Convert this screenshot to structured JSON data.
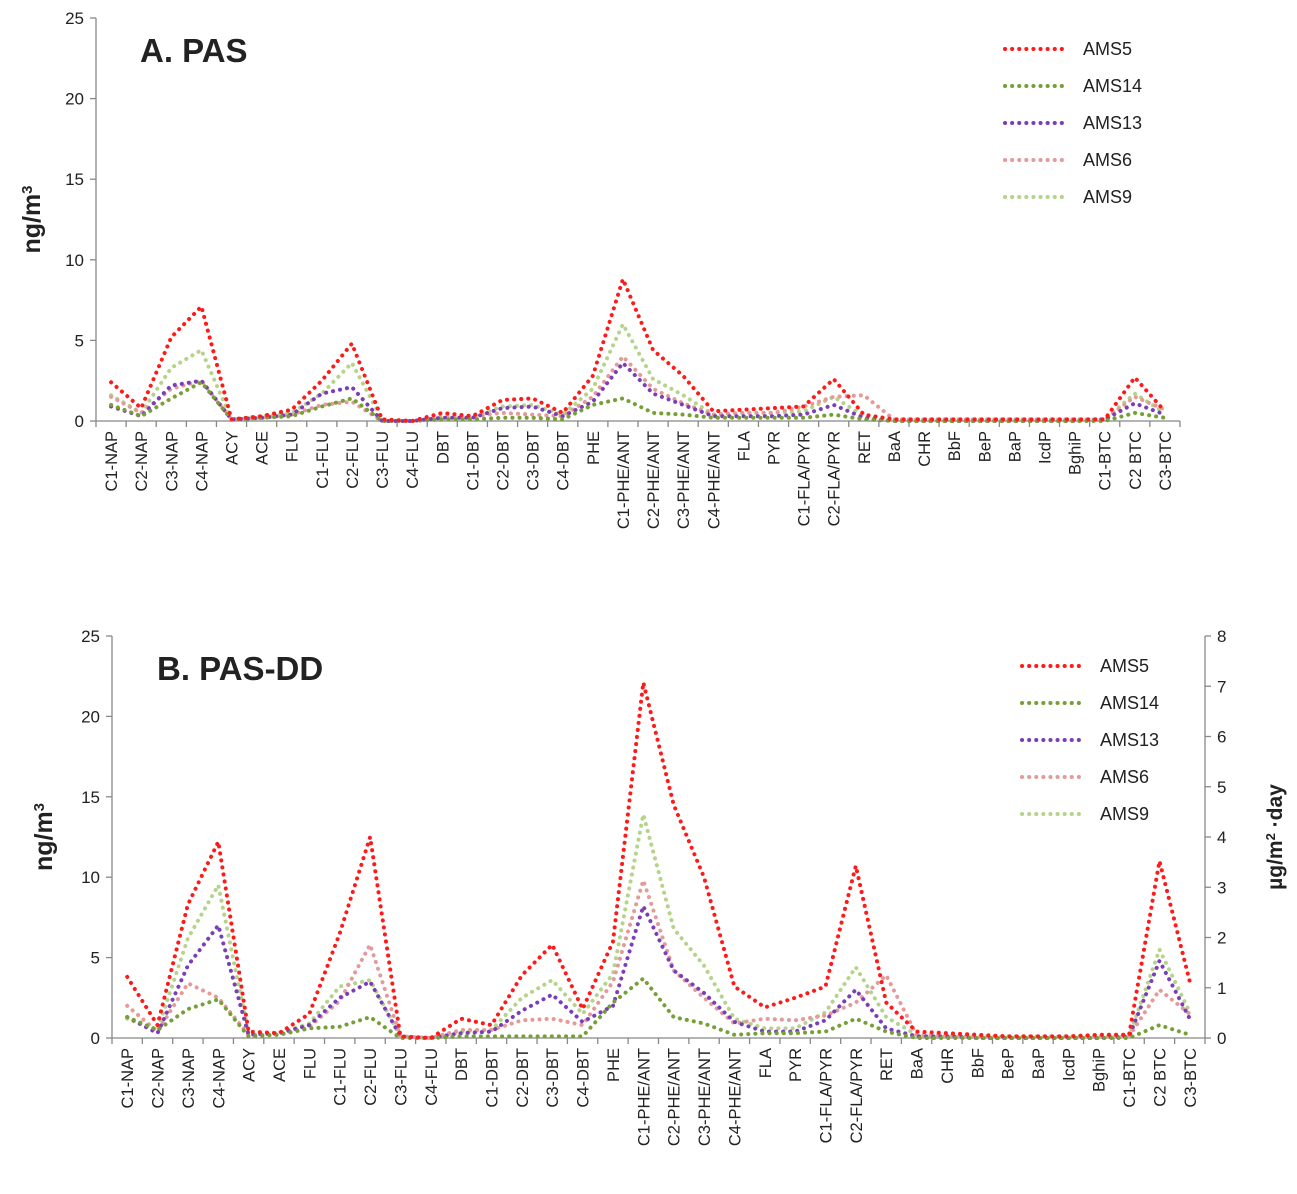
{
  "colors": {
    "AMS5": "#ff1a1a",
    "AMS14": "#76a035",
    "AMS13": "#7a3fb8",
    "AMS6": "#e49a9a",
    "AMS9": "#b5d48a"
  },
  "chart_data": [
    {
      "type": "line",
      "title": "A. PAS",
      "ylabel": "ng/m³",
      "ylabel_main": "ng/m",
      "ylabel_sup": "3",
      "ylim": [
        0,
        25
      ],
      "yticks": [
        0,
        5,
        10,
        15,
        20,
        25
      ],
      "legend_position": "top-right",
      "line_style": "dotted",
      "categories": [
        "C1-NAP",
        "C2-NAP",
        "C3-NAP",
        "C4-NAP",
        "ACY",
        "ACE",
        "FLU",
        "C1-FLU",
        "C2-FLU",
        "C3-FLU",
        "C4-FLU",
        "DBT",
        "C1-DBT",
        "C2-DBT",
        "C3-DBT",
        "C4-DBT",
        "PHE",
        "C1-PHE/ANT",
        "C2-PHE/ANT",
        "C3-PHE/ANT",
        "C4-PHE/ANT",
        "FLA",
        "PYR",
        "C1-FLA/PYR",
        "C2-FLA/PYR",
        "RET",
        "BaA",
        "CHR",
        "BbF",
        "BeP",
        "BaP",
        "IcdP",
        "BghiP",
        "C1-BTC",
        "C2 BTC",
        "C3-BTC"
      ],
      "series": [
        {
          "name": "AMS5",
          "values": [
            2.4,
            0.8,
            5.2,
            7.1,
            0.1,
            0.3,
            0.7,
            2.5,
            4.8,
            0.1,
            0.0,
            0.5,
            0.3,
            1.3,
            1.4,
            0.5,
            2.8,
            8.8,
            4.4,
            2.8,
            0.6,
            0.7,
            0.8,
            0.9,
            2.6,
            0.4,
            0.1,
            0.1,
            0.1,
            0.1,
            0.1,
            0.1,
            0.1,
            0.1,
            2.7,
            0.6
          ]
        },
        {
          "name": "AMS14",
          "values": [
            1.0,
            0.3,
            1.4,
            2.4,
            0.1,
            0.2,
            0.3,
            0.9,
            1.4,
            0.0,
            0.0,
            0.1,
            0.1,
            0.2,
            0.2,
            0.1,
            1.0,
            1.4,
            0.5,
            0.4,
            0.2,
            0.2,
            0.2,
            0.2,
            0.4,
            0.1,
            0.0,
            0.0,
            0.0,
            0.0,
            0.0,
            0.0,
            0.0,
            0.0,
            0.5,
            0.2
          ]
        },
        {
          "name": "AMS13",
          "values": [
            0.9,
            0.3,
            2.2,
            2.5,
            0.1,
            0.2,
            0.4,
            1.7,
            2.1,
            0.0,
            0.0,
            0.2,
            0.2,
            0.8,
            0.9,
            0.3,
            1.2,
            3.6,
            1.7,
            1.0,
            0.3,
            0.3,
            0.3,
            0.4,
            1.0,
            0.2,
            0.0,
            0.0,
            0.0,
            0.0,
            0.0,
            0.0,
            0.0,
            0.1,
            1.1,
            0.4
          ]
        },
        {
          "name": "AMS6",
          "values": [
            1.5,
            0.5,
            2.0,
            2.5,
            0.1,
            0.2,
            0.4,
            1.0,
            1.2,
            0.0,
            0.0,
            0.2,
            0.3,
            0.5,
            0.4,
            0.3,
            1.5,
            4.0,
            2.0,
            1.1,
            0.4,
            0.5,
            0.5,
            0.9,
            1.5,
            1.6,
            0.1,
            0.1,
            0.1,
            0.1,
            0.1,
            0.1,
            0.1,
            0.1,
            1.5,
            0.7
          ]
        },
        {
          "name": "AMS9",
          "values": [
            1.6,
            0.5,
            3.3,
            4.4,
            0.1,
            0.3,
            0.5,
            1.7,
            3.6,
            0.1,
            0.0,
            0.3,
            0.3,
            0.9,
            1.0,
            0.4,
            2.0,
            6.0,
            2.6,
            1.6,
            0.4,
            0.5,
            0.5,
            0.6,
            1.5,
            0.3,
            0.1,
            0.1,
            0.1,
            0.1,
            0.1,
            0.1,
            0.1,
            0.1,
            1.7,
            0.5
          ]
        }
      ]
    },
    {
      "type": "line",
      "title": "B. PAS-DD",
      "ylabel": "ng/m³",
      "ylabel_main": "ng/m",
      "ylabel_sup": "3",
      "ylabel_right": "µg/m²·day",
      "ylabel_right_main": "µg/m",
      "ylabel_right_sup": "2",
      "ylabel_right_suffix": " ·day",
      "ylim": [
        0,
        25
      ],
      "yticks": [
        0,
        5,
        10,
        15,
        20,
        25
      ],
      "ylim_right": [
        0,
        8
      ],
      "yticks_right": [
        0,
        1,
        2,
        3,
        4,
        5,
        6,
        7,
        8
      ],
      "legend_position": "top-right",
      "line_style": "dotted",
      "categories": [
        "C1-NAP",
        "C2-NAP",
        "C3-NAP",
        "C4-NAP",
        "ACY",
        "ACE",
        "FLU",
        "C1-FLU",
        "C2-FLU",
        "C3-FLU",
        "C4-FLU",
        "DBT",
        "C1-DBT",
        "C2-DBT",
        "C3-DBT",
        "C4-DBT",
        "PHE",
        "C1-PHE/ANT",
        "C2-PHE/ANT",
        "C3-PHE/ANT",
        "C4-PHE/ANT",
        "FLA",
        "PYR",
        "C1-FLA/PYR",
        "C2-FLA/PYR",
        "RET",
        "BaA",
        "CHR",
        "BbF",
        "BeP",
        "BaP",
        "IcdP",
        "BghiP",
        "C1-BTC",
        "C2 BTC",
        "C3-BTC"
      ],
      "series": [
        {
          "name": "AMS5",
          "values": [
            3.8,
            0.8,
            8.3,
            12.2,
            0.4,
            0.3,
            1.5,
            6.5,
            12.5,
            0.1,
            0.0,
            1.2,
            0.8,
            3.9,
            5.8,
            1.8,
            6.0,
            22.1,
            14.5,
            10.0,
            3.2,
            1.9,
            2.5,
            3.2,
            10.7,
            2.2,
            0.4,
            0.3,
            0.2,
            0.1,
            0.1,
            0.1,
            0.2,
            0.2,
            11.0,
            3.5
          ]
        },
        {
          "name": "AMS14",
          "values": [
            1.3,
            0.5,
            1.8,
            2.4,
            0.1,
            0.2,
            0.6,
            0.7,
            1.3,
            0.0,
            0.0,
            0.1,
            0.1,
            0.1,
            0.1,
            0.1,
            2.2,
            3.7,
            1.3,
            0.9,
            0.2,
            0.3,
            0.3,
            0.4,
            1.2,
            0.4,
            0.0,
            0.0,
            0.0,
            0.0,
            0.0,
            0.0,
            0.0,
            0.0,
            0.8,
            0.2
          ]
        },
        {
          "name": "AMS13",
          "values": [
            1.3,
            0.3,
            4.5,
            7.0,
            0.2,
            0.3,
            0.8,
            2.5,
            3.5,
            0.1,
            0.0,
            0.3,
            0.4,
            1.7,
            2.7,
            1.0,
            2.0,
            8.2,
            4.2,
            2.8,
            1.0,
            0.4,
            0.4,
            1.1,
            3.0,
            0.6,
            0.1,
            0.1,
            0.0,
            0.0,
            0.0,
            0.0,
            0.0,
            0.1,
            4.8,
            1.2
          ]
        },
        {
          "name": "AMS6",
          "values": [
            2.0,
            0.4,
            3.4,
            2.5,
            0.2,
            0.2,
            0.7,
            2.3,
            5.8,
            0.1,
            0.0,
            0.5,
            0.5,
            1.1,
            1.2,
            0.8,
            3.5,
            9.8,
            4.2,
            2.5,
            0.9,
            1.2,
            1.1,
            1.4,
            2.2,
            3.9,
            0.2,
            0.1,
            0.1,
            0.1,
            0.1,
            0.1,
            0.1,
            0.1,
            3.0,
            1.5
          ]
        },
        {
          "name": "AMS9",
          "values": [
            1.2,
            0.5,
            6.2,
            9.5,
            0.2,
            0.3,
            0.9,
            3.2,
            3.6,
            0.1,
            0.0,
            0.4,
            0.5,
            2.5,
            3.6,
            1.5,
            4.0,
            13.9,
            6.8,
            4.5,
            1.2,
            0.6,
            0.6,
            1.6,
            4.4,
            1.3,
            0.2,
            0.1,
            0.1,
            0.1,
            0.1,
            0.1,
            0.1,
            0.1,
            5.5,
            1.6
          ]
        }
      ]
    }
  ]
}
